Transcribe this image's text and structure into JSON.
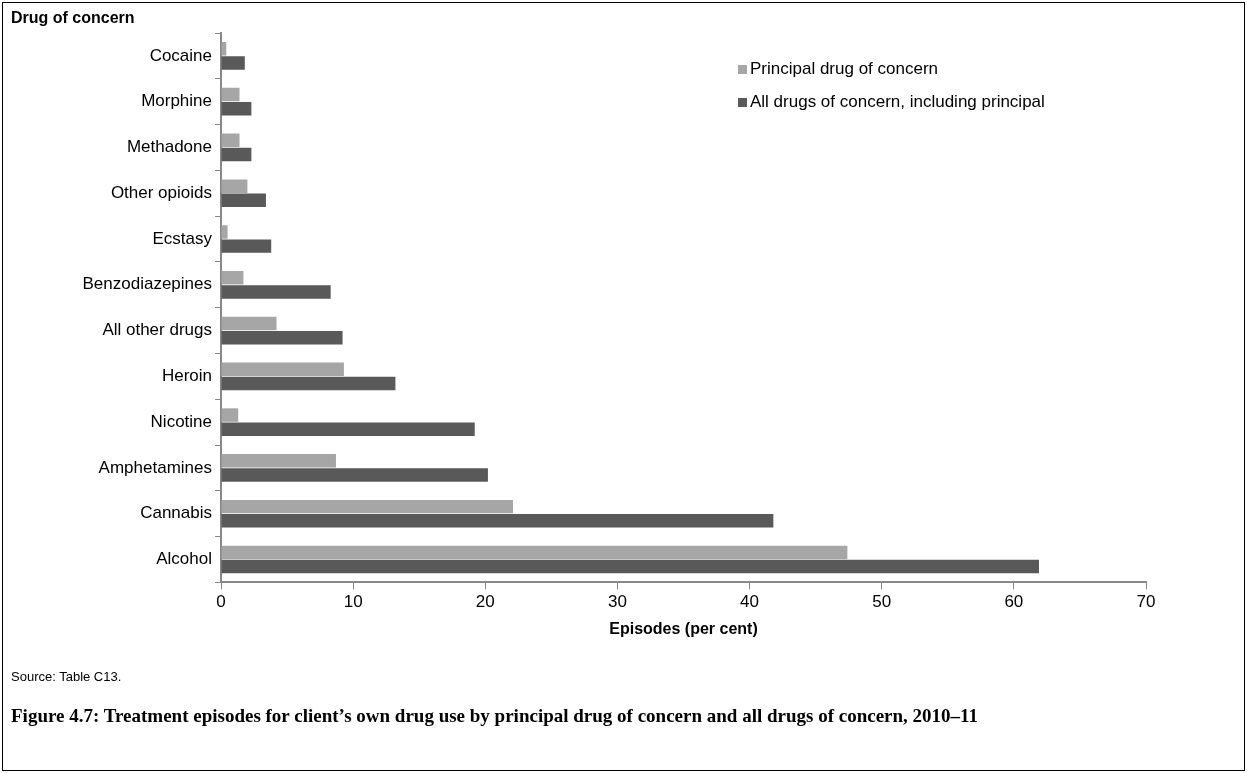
{
  "chart_data": {
    "type": "bar",
    "orientation": "horizontal",
    "title": "Figure 4.7: Treatment episodes for client’s own drug use by principal drug of concern and all drugs of concern, 2010–11",
    "xlabel": "Episodes (per cent)",
    "ylabel": "Drug of concern",
    "annotations": [
      "Source: Table C13."
    ],
    "categories": [
      "Cocaine",
      "Morphine",
      "Methadone",
      "Other opioids",
      "Ecstasy",
      "Benzodiazepines",
      "All other drugs",
      "Heroin",
      "Nicotine",
      "Amphetamines",
      "Cannabis",
      "Alcohol"
    ],
    "series": [
      {
        "name": "Principal drug of concern",
        "color": "#a6a6a6",
        "values": [
          0.4,
          1.4,
          1.4,
          2.0,
          0.5,
          1.7,
          4.2,
          9.3,
          1.3,
          8.7,
          22.1,
          47.4
        ]
      },
      {
        "name": "All drugs of concern, including principal",
        "color": "#595959",
        "values": [
          1.8,
          2.3,
          2.3,
          3.4,
          3.8,
          8.3,
          9.2,
          13.2,
          19.2,
          20.2,
          41.8,
          61.9
        ]
      }
    ],
    "xlim": [
      0,
      70
    ],
    "xticks": [
      0,
      10,
      20,
      30,
      40,
      50,
      60,
      70
    ],
    "grid": false,
    "legend": "top right"
  }
}
